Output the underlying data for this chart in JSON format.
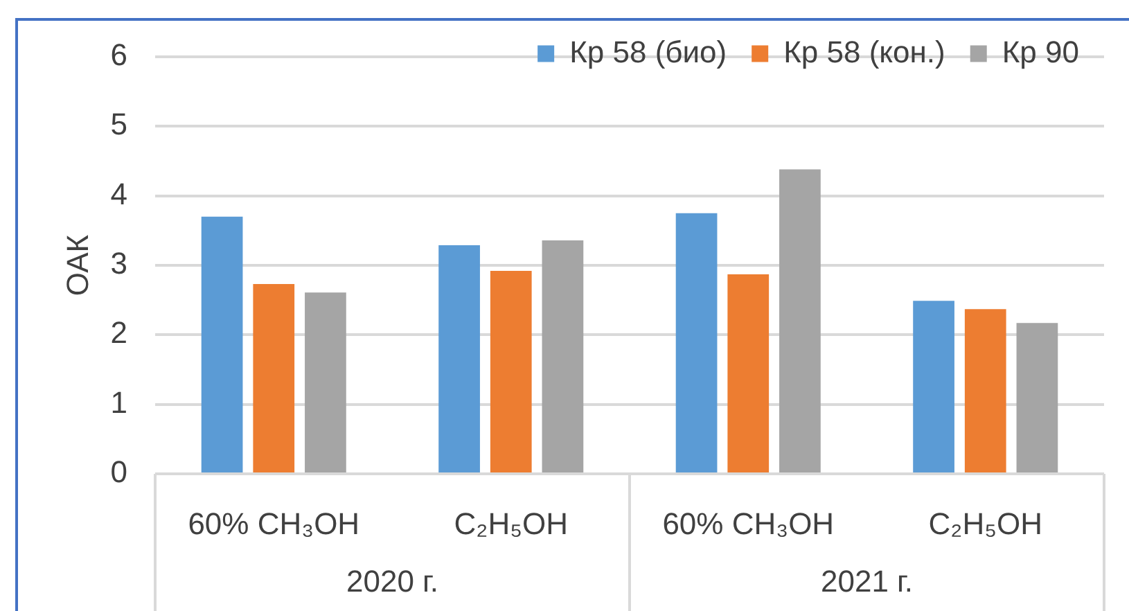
{
  "chart_data": {
    "type": "bar",
    "ylabel": "ОАК",
    "categories": [
      "60% CH₃OH",
      "C₂H₅OH",
      "60% CH₃OH",
      "C₂H₅OH"
    ],
    "series": [
      {
        "name": "Кр 58 (био)",
        "color": "#5b9bd5",
        "values": [
          3.7,
          3.29,
          3.75,
          2.49
        ]
      },
      {
        "name": "Кр 58 (кон.)",
        "color": "#ed7d31",
        "values": [
          2.73,
          2.92,
          2.87,
          2.37
        ]
      },
      {
        "name": "Кр 90",
        "color": "#a5a5a5",
        "values": [
          2.61,
          3.36,
          4.38,
          2.17
        ]
      }
    ],
    "ylim": [
      0,
      6
    ],
    "yticks": [
      0,
      1,
      2,
      3,
      4,
      5,
      6
    ],
    "grid": "y",
    "legend": "top right",
    "annotations": [
      "2020 г.",
      "2021 г."
    ]
  }
}
